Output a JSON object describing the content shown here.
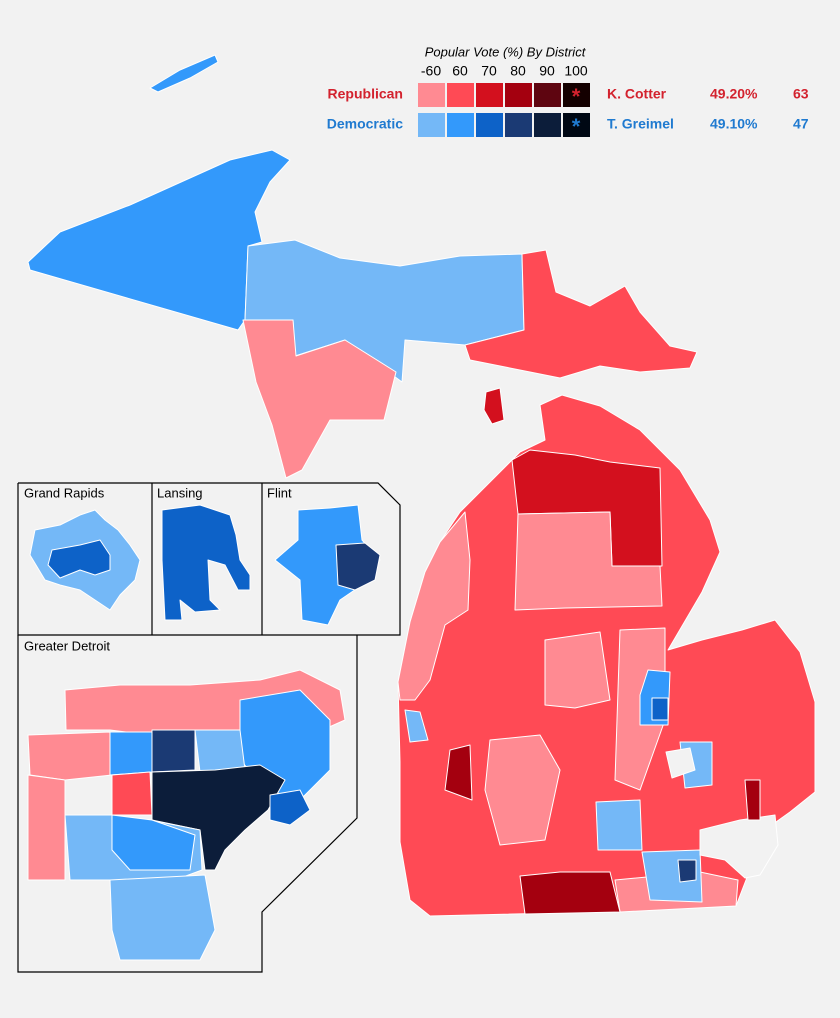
{
  "legend": {
    "title": "Popular Vote (%) By District",
    "bins": [
      "-60",
      "60",
      "70",
      "80",
      "90",
      "100"
    ],
    "parties": [
      {
        "name": "Republican",
        "color": "#d3222e",
        "swatches": [
          "#ff8a92",
          "#ff4a55",
          "#d3101e",
          "#a4000f",
          "#5e0510",
          "#140000"
        ],
        "candidate": "K. Cotter",
        "vote_share": "49.20%",
        "seats": "63"
      },
      {
        "name": "Democratic",
        "color": "#1f7ad0",
        "swatches": [
          "#74b8f7",
          "#3399fb",
          "#0d62c8",
          "#1b3a74",
          "#0c1d3a",
          "#000814"
        ],
        "candidate": "T. Greimel",
        "vote_share": "49.10%",
        "seats": "47"
      }
    ]
  },
  "insets": [
    "Grand Rapids",
    "Lansing",
    "Flint",
    "Greater Detroit"
  ]
}
